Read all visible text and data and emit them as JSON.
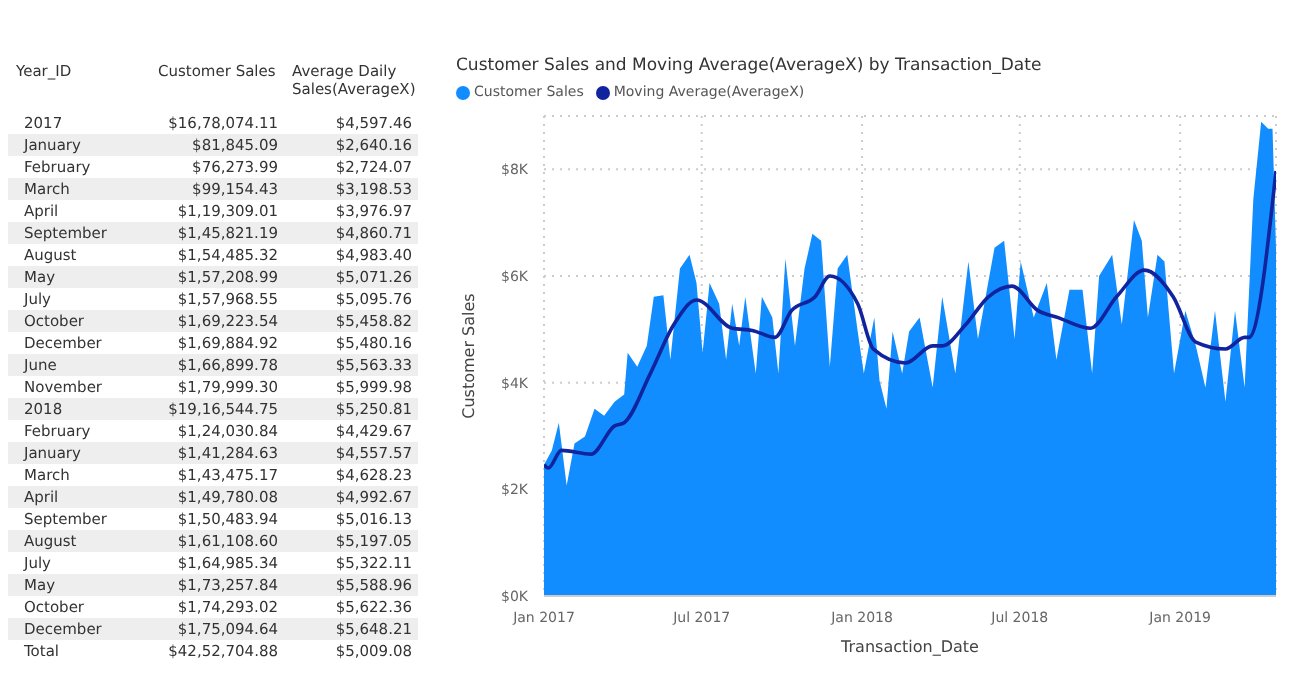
{
  "chart_data": [
    {
      "type": "other",
      "xlabel": "Year_ID",
      "categories": [
        "2017",
        "January",
        "February",
        "March",
        "April",
        "September",
        "August",
        "May",
        "July",
        "October",
        "December",
        "June",
        "November",
        "2018",
        "February",
        "January",
        "March",
        "April",
        "September",
        "August",
        "July",
        "May",
        "October",
        "December",
        "Total"
      ],
      "series": [
        {
          "name": "Customer Sales",
          "values": [
            1678074.11,
            81845.09,
            76273.99,
            99154.43,
            119309.01,
            145821.19,
            154485.32,
            157208.99,
            157968.55,
            169223.54,
            169884.92,
            166899.78,
            179999.3,
            1916544.75,
            124030.84,
            141284.63,
            143475.17,
            149780.08,
            150483.94,
            161108.6,
            164985.34,
            173257.84,
            174293.02,
            175094.64,
            4252704.88
          ],
          "value_labels": [
            "$16,78,074.11",
            "$81,845.09",
            "$76,273.99",
            "$99,154.43",
            "$1,19,309.01",
            "$1,45,821.19",
            "$1,54,485.32",
            "$1,57,208.99",
            "$1,57,968.55",
            "$1,69,223.54",
            "$1,69,884.92",
            "$1,66,899.78",
            "$1,79,999.30",
            "$19,16,544.75",
            "$1,24,030.84",
            "$1,41,284.63",
            "$1,43,475.17",
            "$1,49,780.08",
            "$1,50,483.94",
            "$1,61,108.60",
            "$1,64,985.34",
            "$1,73,257.84",
            "$1,74,293.02",
            "$1,75,094.64",
            "$42,52,704.88"
          ]
        },
        {
          "name": "Average Daily Sales(AverageX)",
          "values": [
            4597.46,
            2640.16,
            2724.07,
            3198.53,
            3976.97,
            4860.71,
            4983.4,
            5071.26,
            5095.76,
            5458.82,
            5480.16,
            5563.33,
            5999.98,
            5250.81,
            4429.67,
            4557.57,
            4628.23,
            4992.67,
            5016.13,
            5197.05,
            5322.11,
            5588.96,
            5622.36,
            5648.21,
            5009.08
          ],
          "value_labels": [
            "$4,597.46",
            "$2,640.16",
            "$2,724.07",
            "$3,198.53",
            "$3,976.97",
            "$4,860.71",
            "$4,983.40",
            "$5,071.26",
            "$5,095.76",
            "$5,458.82",
            "$5,480.16",
            "$5,563.33",
            "$5,999.98",
            "$5,250.81",
            "$4,429.67",
            "$4,557.57",
            "$4,628.23",
            "$4,992.67",
            "$5,016.13",
            "$5,197.05",
            "$5,322.11",
            "$5,588.96",
            "$5,622.36",
            "$5,648.21",
            "$5,009.08"
          ]
        }
      ]
    },
    {
      "type": "area",
      "title": "Customer Sales and Moving Average(AverageX) by Transaction_Date",
      "xlabel": "Transaction_Date",
      "ylabel": "Customer Sales",
      "legend": "top left",
      "grid": true,
      "xlim": [
        "2017-01-01",
        "2019-04-21"
      ],
      "xticks": [
        {
          "value": "2017-01-01",
          "label": "Jan 2017"
        },
        {
          "value": "2017-07-01",
          "label": "Jul 2017"
        },
        {
          "value": "2018-01-01",
          "label": "Jan 2018"
        },
        {
          "value": "2018-07-01",
          "label": "Jul 2018"
        },
        {
          "value": "2019-01-01",
          "label": "Jan 2019"
        }
      ],
      "ylim": [
        0,
        9000
      ],
      "yticks": [
        {
          "value": 0,
          "label": "$0K"
        },
        {
          "value": 2000,
          "label": "$2K"
        },
        {
          "value": 4000,
          "label": "$4K"
        },
        {
          "value": 6000,
          "label": "$6K"
        },
        {
          "value": 8000,
          "label": "$8K"
        }
      ],
      "series": [
        {
          "name": "Customer Sales",
          "type": "area",
          "color": "#118dff",
          "x": [
            "2017-01-01",
            "2017-01-10",
            "2017-01-18",
            "2017-01-27",
            "2017-02-05",
            "2017-02-17",
            "2017-02-28",
            "2017-03-11",
            "2017-03-23",
            "2017-04-03",
            "2017-04-07",
            "2017-04-18",
            "2017-04-29",
            "2017-05-07",
            "2017-05-18",
            "2017-05-26",
            "2017-06-06",
            "2017-06-17",
            "2017-06-25",
            "2017-07-02",
            "2017-07-10",
            "2017-07-21",
            "2017-07-29",
            "2017-08-05",
            "2017-08-13",
            "2017-08-20",
            "2017-09-01",
            "2017-09-08",
            "2017-09-20",
            "2017-09-27",
            "2017-10-05",
            "2017-10-16",
            "2017-10-27",
            "2017-11-05",
            "2017-11-15",
            "2017-11-25",
            "2017-12-04",
            "2017-12-15",
            "2017-12-27",
            "2018-01-03",
            "2018-01-15",
            "2018-01-21",
            "2018-01-29",
            "2018-02-05",
            "2018-02-16",
            "2018-02-24",
            "2018-03-08",
            "2018-03-23",
            "2018-04-03",
            "2018-04-18",
            "2018-05-03",
            "2018-05-14",
            "2018-06-02",
            "2018-06-13",
            "2018-06-25",
            "2018-07-02",
            "2018-07-17",
            "2018-08-01",
            "2018-08-12",
            "2018-08-27",
            "2018-09-11",
            "2018-09-22",
            "2018-09-30",
            "2018-10-15",
            "2018-10-26",
            "2018-11-09",
            "2018-11-18",
            "2018-11-25",
            "2018-12-06",
            "2018-12-14",
            "2018-12-25",
            "2019-01-07",
            "2019-01-19",
            "2019-01-30",
            "2019-02-10",
            "2019-02-22",
            "2019-03-05",
            "2019-03-16",
            "2019-03-26",
            "2019-04-04",
            "2019-04-12",
            "2019-04-17",
            "2019-04-21"
          ],
          "values": [
            2460,
            2730,
            3250,
            2070,
            2860,
            2990,
            3510,
            3380,
            3640,
            3780,
            4560,
            4300,
            4690,
            5610,
            5640,
            4430,
            6140,
            6400,
            5870,
            4560,
            5870,
            5480,
            4430,
            5480,
            4690,
            5610,
            4170,
            5610,
            5220,
            4170,
            6330,
            4690,
            6140,
            6790,
            6660,
            4300,
            6140,
            6400,
            4960,
            4170,
            5220,
            4040,
            3510,
            4960,
            4170,
            4960,
            5220,
            3910,
            5610,
            4170,
            6270,
            4820,
            6530,
            6660,
            4820,
            6270,
            5220,
            5870,
            4430,
            5740,
            5740,
            4170,
            6000,
            6400,
            5090,
            7050,
            6660,
            5220,
            6400,
            6270,
            4170,
            5350,
            4690,
            3910,
            5350,
            3640,
            5350,
            3910,
            7450,
            8890,
            8760,
            8760,
            6530
          ]
        },
        {
          "name": "Moving Average(AverageX)",
          "type": "line",
          "color": "#12239e",
          "x": [
            "2017-01-01",
            "2017-01-06",
            "2017-01-21",
            "2017-02-24",
            "2017-03-23",
            "2017-04-03",
            "2017-05-03",
            "2017-05-30",
            "2017-06-25",
            "2017-08-05",
            "2017-08-28",
            "2017-09-23",
            "2017-10-12",
            "2017-11-08",
            "2017-11-25",
            "2017-12-27",
            "2018-01-14",
            "2018-02-20",
            "2018-03-23",
            "2018-04-03",
            "2018-04-30",
            "2018-05-26",
            "2018-06-22",
            "2018-07-22",
            "2018-08-14",
            "2018-09-20",
            "2018-10-20",
            "2018-11-21",
            "2018-12-24",
            "2019-01-19",
            "2019-02-22",
            "2019-03-16",
            "2019-03-21",
            "2019-04-21"
          ],
          "values": [
            2460,
            2400,
            2730,
            2660,
            3190,
            3250,
            4170,
            5090,
            5550,
            5020,
            4980,
            4850,
            5350,
            5610,
            6000,
            5480,
            4630,
            4370,
            4690,
            4690,
            5090,
            5610,
            5810,
            5350,
            5220,
            5020,
            5610,
            6110,
            5610,
            4760,
            4630,
            4850,
            4850,
            7970
          ]
        }
      ]
    }
  ]
}
